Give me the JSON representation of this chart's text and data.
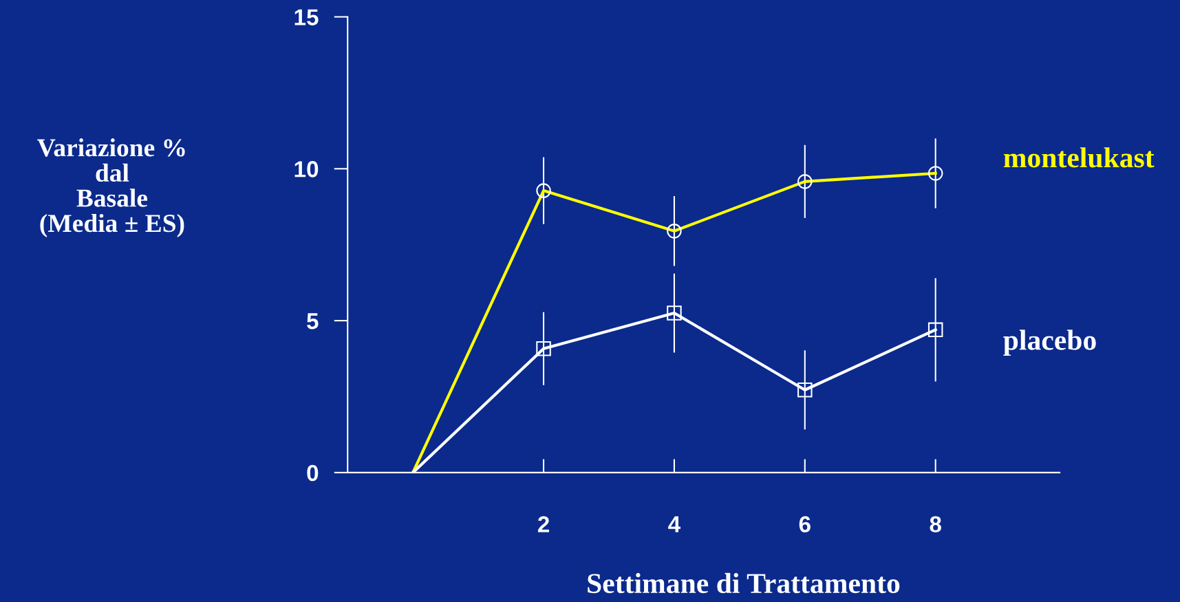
{
  "chart_data": {
    "type": "line",
    "xlabel": "Settimane di Trattamento",
    "ylabel": "Variazione %\ndal\nBasale\n(Media ± ES)",
    "x": [
      0,
      2,
      4,
      6,
      8
    ],
    "xlim": [
      -1,
      9.9
    ],
    "xticks": [
      2,
      4,
      6,
      8
    ],
    "ylim": [
      0,
      15
    ],
    "yticks": [
      0,
      5,
      10,
      15
    ],
    "grid": false,
    "legend": false,
    "series": [
      {
        "name": "montelukast",
        "color": "#ffff00",
        "marker": "circle",
        "values": [
          0,
          9.28,
          7.95,
          9.58,
          9.85
        ],
        "errors": [
          null,
          1.1,
          1.15,
          1.2,
          1.15
        ]
      },
      {
        "name": "placebo",
        "color": "#ffffff",
        "marker": "square",
        "values": [
          0,
          4.08,
          5.25,
          2.72,
          4.7
        ],
        "errors": [
          null,
          1.2,
          1.3,
          1.3,
          1.7
        ]
      }
    ]
  }
}
